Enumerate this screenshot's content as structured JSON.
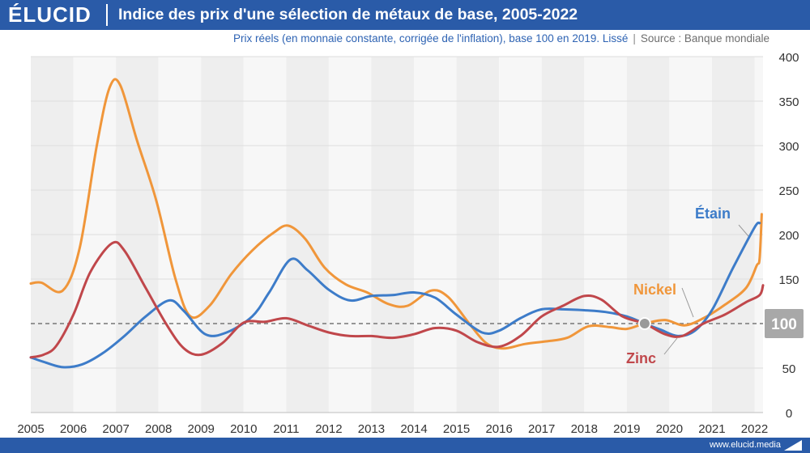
{
  "brand": {
    "logo": "ÉLUCID",
    "url": "www.elucid.media"
  },
  "header": {
    "title": "Indice des prix d'une sélection de métaux de base, 2005-2022",
    "subtitle": "Prix réels (en monnaie constante, corrigée de l'inflation), base 100 en 2019. Lissé",
    "source": "Source : Banque mondiale"
  },
  "colors": {
    "header_bg": "#2a5ba8",
    "etain": "#3d7cc9",
    "nickel": "#f0963a",
    "zinc": "#c0474b",
    "reference": "#777777",
    "badge": "#a8a8a8"
  },
  "chart_data": {
    "type": "line",
    "xlim": [
      2005,
      2022.2
    ],
    "ylim": [
      0,
      400
    ],
    "x_ticks": [
      "2005",
      "2006",
      "2007",
      "2008",
      "2009",
      "2010",
      "2011",
      "2012",
      "2013",
      "2014",
      "2015",
      "2016",
      "2017",
      "2018",
      "2019",
      "2020",
      "2021",
      "2022"
    ],
    "y_ticks": [
      "0",
      "50",
      "100",
      "150",
      "200",
      "250",
      "300",
      "350",
      "400"
    ],
    "y_axis_position": "right",
    "background": "alternating vertical bands per year",
    "reference_line": {
      "value": 100,
      "label": "100"
    },
    "base_point": {
      "x": 2019.42,
      "y": 100
    },
    "series": [
      {
        "name": "Étain",
        "color": "#3d7cc9",
        "points": [
          [
            2005,
            62
          ],
          [
            2005.3,
            57
          ],
          [
            2005.75,
            51
          ],
          [
            2006.2,
            54
          ],
          [
            2006.7,
            67
          ],
          [
            2007.2,
            86
          ],
          [
            2007.7,
            108
          ],
          [
            2008.25,
            126
          ],
          [
            2008.6,
            114
          ],
          [
            2009.1,
            88
          ],
          [
            2009.6,
            90
          ],
          [
            2010.2,
            108
          ],
          [
            2010.6,
            135
          ],
          [
            2011.1,
            172
          ],
          [
            2011.5,
            160
          ],
          [
            2012.0,
            138
          ],
          [
            2012.5,
            126
          ],
          [
            2013.0,
            131
          ],
          [
            2013.5,
            132
          ],
          [
            2014.0,
            135
          ],
          [
            2014.5,
            129
          ],
          [
            2015.0,
            110
          ],
          [
            2015.6,
            90
          ],
          [
            2016.0,
            92
          ],
          [
            2016.5,
            106
          ],
          [
            2017.0,
            116
          ],
          [
            2017.5,
            116
          ],
          [
            2018.0,
            115
          ],
          [
            2018.5,
            113
          ],
          [
            2019.0,
            108
          ],
          [
            2019.42,
            100
          ],
          [
            2019.8,
            93
          ],
          [
            2020.2,
            86
          ],
          [
            2020.6,
            92
          ],
          [
            2021.0,
            115
          ],
          [
            2021.5,
            163
          ],
          [
            2022.0,
            208
          ],
          [
            2022.12,
            213
          ]
        ]
      },
      {
        "name": "Nickel",
        "color": "#f0963a",
        "points": [
          [
            2005,
            145
          ],
          [
            2005.25,
            146
          ],
          [
            2005.75,
            137
          ],
          [
            2006.15,
            185
          ],
          [
            2006.55,
            300
          ],
          [
            2006.85,
            365
          ],
          [
            2007.1,
            368
          ],
          [
            2007.5,
            305
          ],
          [
            2007.95,
            238
          ],
          [
            2008.4,
            150
          ],
          [
            2008.75,
            108
          ],
          [
            2009.2,
            120
          ],
          [
            2009.7,
            155
          ],
          [
            2010.2,
            182
          ],
          [
            2010.7,
            202
          ],
          [
            2011.05,
            210
          ],
          [
            2011.45,
            195
          ],
          [
            2011.9,
            163
          ],
          [
            2012.4,
            144
          ],
          [
            2012.9,
            135
          ],
          [
            2013.4,
            122
          ],
          [
            2013.85,
            120
          ],
          [
            2014.4,
            137
          ],
          [
            2014.8,
            130
          ],
          [
            2015.3,
            100
          ],
          [
            2015.7,
            78
          ],
          [
            2016.1,
            72
          ],
          [
            2016.6,
            77
          ],
          [
            2017.1,
            80
          ],
          [
            2017.6,
            84
          ],
          [
            2018.1,
            97
          ],
          [
            2018.6,
            96
          ],
          [
            2019.0,
            94
          ],
          [
            2019.42,
            100
          ],
          [
            2019.9,
            104
          ],
          [
            2020.35,
            98
          ],
          [
            2020.8,
            106
          ],
          [
            2021.3,
            121
          ],
          [
            2021.8,
            140
          ],
          [
            2022.05,
            165
          ],
          [
            2022.12,
            173
          ],
          [
            2022.17,
            223
          ]
        ]
      },
      {
        "name": "Zinc",
        "color": "#c0474b",
        "points": [
          [
            2005,
            62
          ],
          [
            2005.3,
            65
          ],
          [
            2005.6,
            75
          ],
          [
            2006.0,
            110
          ],
          [
            2006.4,
            158
          ],
          [
            2006.9,
            190
          ],
          [
            2007.2,
            182
          ],
          [
            2007.7,
            140
          ],
          [
            2008.2,
            98
          ],
          [
            2008.6,
            72
          ],
          [
            2009.0,
            65
          ],
          [
            2009.5,
            78
          ],
          [
            2010.0,
            101
          ],
          [
            2010.5,
            102
          ],
          [
            2011.0,
            106
          ],
          [
            2011.5,
            98
          ],
          [
            2012.0,
            90
          ],
          [
            2012.5,
            86
          ],
          [
            2013.0,
            86
          ],
          [
            2013.5,
            84
          ],
          [
            2014.0,
            88
          ],
          [
            2014.5,
            95
          ],
          [
            2015.0,
            92
          ],
          [
            2015.5,
            79
          ],
          [
            2016.0,
            74
          ],
          [
            2016.5,
            86
          ],
          [
            2017.0,
            108
          ],
          [
            2017.5,
            120
          ],
          [
            2018.0,
            131
          ],
          [
            2018.4,
            127
          ],
          [
            2018.9,
            108
          ],
          [
            2019.42,
            100
          ],
          [
            2019.9,
            88
          ],
          [
            2020.3,
            86
          ],
          [
            2020.8,
            100
          ],
          [
            2021.3,
            110
          ],
          [
            2021.8,
            124
          ],
          [
            2022.12,
            132
          ],
          [
            2022.2,
            143
          ]
        ]
      }
    ]
  }
}
